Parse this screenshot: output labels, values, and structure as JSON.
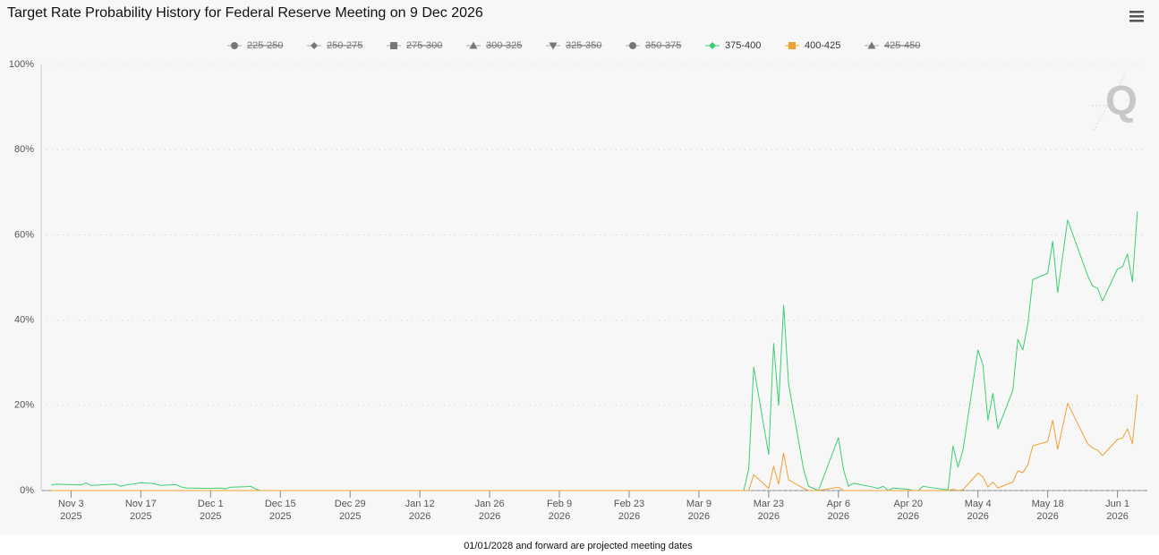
{
  "chart_data": {
    "type": "line",
    "title": "Target Rate Probability History for Federal Reserve Meeting on 9 Dec 2026",
    "note": "01/01/2028 and forward are projected meeting dates",
    "grid": true,
    "legend": "top",
    "xlim": [
      "2025-10-28",
      "2026-06-07"
    ],
    "xticks": [
      {
        "value": "2025-11-03",
        "label": [
          "Nov 3",
          "2025"
        ]
      },
      {
        "value": "2025-11-17",
        "label": [
          "Nov 17",
          "2025"
        ]
      },
      {
        "value": "2025-12-01",
        "label": [
          "Dec 1",
          "2025"
        ]
      },
      {
        "value": "2025-12-15",
        "label": [
          "Dec 15",
          "2025"
        ]
      },
      {
        "value": "2025-12-29",
        "label": [
          "Dec 29",
          "2025"
        ]
      },
      {
        "value": "2026-01-12",
        "label": [
          "Jan 12",
          "2026"
        ]
      },
      {
        "value": "2026-01-26",
        "label": [
          "Jan 26",
          "2026"
        ]
      },
      {
        "value": "2026-02-09",
        "label": [
          "Feb 9",
          "2026"
        ]
      },
      {
        "value": "2026-02-23",
        "label": [
          "Feb 23",
          "2026"
        ]
      },
      {
        "value": "2026-03-09",
        "label": [
          "Mar 9",
          "2026"
        ]
      },
      {
        "value": "2026-03-23",
        "label": [
          "Mar 23",
          "2026"
        ]
      },
      {
        "value": "2026-04-06",
        "label": [
          "Apr 6",
          "2026"
        ]
      },
      {
        "value": "2026-04-20",
        "label": [
          "Apr 20",
          "2026"
        ]
      },
      {
        "value": "2026-05-04",
        "label": [
          "May 4",
          "2026"
        ]
      },
      {
        "value": "2026-05-18",
        "label": [
          "May 18",
          "2026"
        ]
      },
      {
        "value": "2026-06-01",
        "label": [
          "Jun 1",
          "2026"
        ]
      }
    ],
    "ylim": [
      0,
      100
    ],
    "yticks": [
      {
        "value": 0,
        "label": "0%"
      },
      {
        "value": 20,
        "label": "20%"
      },
      {
        "value": 40,
        "label": "40%"
      },
      {
        "value": 60,
        "label": "60%"
      },
      {
        "value": 80,
        "label": "80%"
      },
      {
        "value": 100,
        "label": "100%"
      }
    ],
    "x": [
      "2025-10-30",
      "2025-10-31",
      "2025-11-03",
      "2025-11-05",
      "2025-11-06",
      "2025-11-07",
      "2025-11-10",
      "2025-11-12",
      "2025-11-13",
      "2025-11-14",
      "2025-11-17",
      "2025-11-19",
      "2025-11-20",
      "2025-11-21",
      "2025-11-24",
      "2025-11-25",
      "2025-11-26",
      "2025-12-01",
      "2025-12-03",
      "2025-12-04",
      "2025-12-05",
      "2025-12-08",
      "2025-12-09",
      "2025-12-10",
      "2025-12-11",
      "2026-03-18",
      "2026-03-19",
      "2026-03-20",
      "2026-03-23",
      "2026-03-24",
      "2026-03-25",
      "2026-03-26",
      "2026-03-27",
      "2026-03-30",
      "2026-03-31",
      "2026-04-01",
      "2026-04-02",
      "2026-04-06",
      "2026-04-07",
      "2026-04-08",
      "2026-04-09",
      "2026-04-10",
      "2026-04-13",
      "2026-04-14",
      "2026-04-15",
      "2026-04-16",
      "2026-04-17",
      "2026-04-20",
      "2026-04-21",
      "2026-04-22",
      "2026-04-23",
      "2026-04-24",
      "2026-04-27",
      "2026-04-28",
      "2026-04-29",
      "2026-04-30",
      "2026-05-01",
      "2026-05-04",
      "2026-05-05",
      "2026-05-06",
      "2026-05-07",
      "2026-05-08",
      "2026-05-11",
      "2026-05-12",
      "2026-05-13",
      "2026-05-14",
      "2026-05-15",
      "2026-05-18",
      "2026-05-19",
      "2026-05-20",
      "2026-05-21",
      "2026-05-22",
      "2026-05-26",
      "2026-05-27",
      "2026-05-28",
      "2026-05-29",
      "2026-06-01",
      "2026-06-02",
      "2026-06-03",
      "2026-06-04",
      "2026-06-05"
    ],
    "series": [
      {
        "name": "225-250",
        "symbol": "circle",
        "visible": false
      },
      {
        "name": "250-275",
        "symbol": "diamond",
        "visible": false
      },
      {
        "name": "275-300",
        "symbol": "square",
        "visible": false
      },
      {
        "name": "300-325",
        "symbol": "triangle",
        "visible": false
      },
      {
        "name": "325-350",
        "symbol": "triangle-down",
        "visible": false
      },
      {
        "name": "350-375",
        "symbol": "circle",
        "visible": false
      },
      {
        "name": "375-400",
        "symbol": "diamond",
        "visible": true,
        "color": "#3ccf6e",
        "values": [
          1.3,
          1.5,
          1.4,
          1.3,
          1.8,
          1.2,
          1.4,
          1.5,
          1.0,
          1.3,
          1.8,
          1.7,
          1.5,
          1.2,
          1.4,
          0.9,
          0.6,
          0.5,
          0.6,
          0.4,
          0.8,
          0.9,
          1.0,
          0.4,
          0,
          0,
          5,
          29,
          8.5,
          34.5,
          20,
          43.5,
          25,
          5,
          1,
          0.5,
          0,
          12.4,
          5,
          1,
          1.7,
          1.5,
          0.8,
          0.5,
          1,
          0,
          0.6,
          0.3,
          0,
          0,
          1,
          0.8,
          0.3,
          0.2,
          10.5,
          5.5,
          9.5,
          33,
          29.5,
          16.5,
          22.8,
          14.5,
          23.5,
          35.5,
          33,
          39,
          49.5,
          51,
          58.5,
          46.5,
          55,
          63.5,
          50.5,
          48,
          47.5,
          44.5,
          52,
          52.5,
          55.5,
          49,
          65.5
        ]
      },
      {
        "name": "400-425",
        "symbol": "square",
        "visible": true,
        "color": "#f0a030",
        "values": [
          0,
          0,
          0,
          0,
          0,
          0,
          0,
          0,
          0,
          0,
          0,
          0,
          0,
          0,
          0,
          0,
          0,
          0,
          0,
          0,
          0,
          0,
          0,
          0,
          0,
          0,
          0,
          3.7,
          0.5,
          5.7,
          1.5,
          8.8,
          2.5,
          0.5,
          0,
          0,
          0,
          0.8,
          0,
          0,
          0,
          0,
          0,
          0,
          0,
          0,
          0,
          0,
          0,
          0,
          0,
          0,
          0,
          0,
          0.3,
          0,
          0.2,
          4.1,
          3.2,
          0.8,
          2,
          0.6,
          2,
          4.6,
          4.2,
          6,
          10.5,
          11.5,
          16.5,
          9.7,
          15,
          20.5,
          11,
          10,
          9.5,
          8.2,
          12,
          12.3,
          14.5,
          11,
          22.5
        ]
      },
      {
        "name": "425-450",
        "symbol": "triangle",
        "visible": false
      }
    ]
  }
}
